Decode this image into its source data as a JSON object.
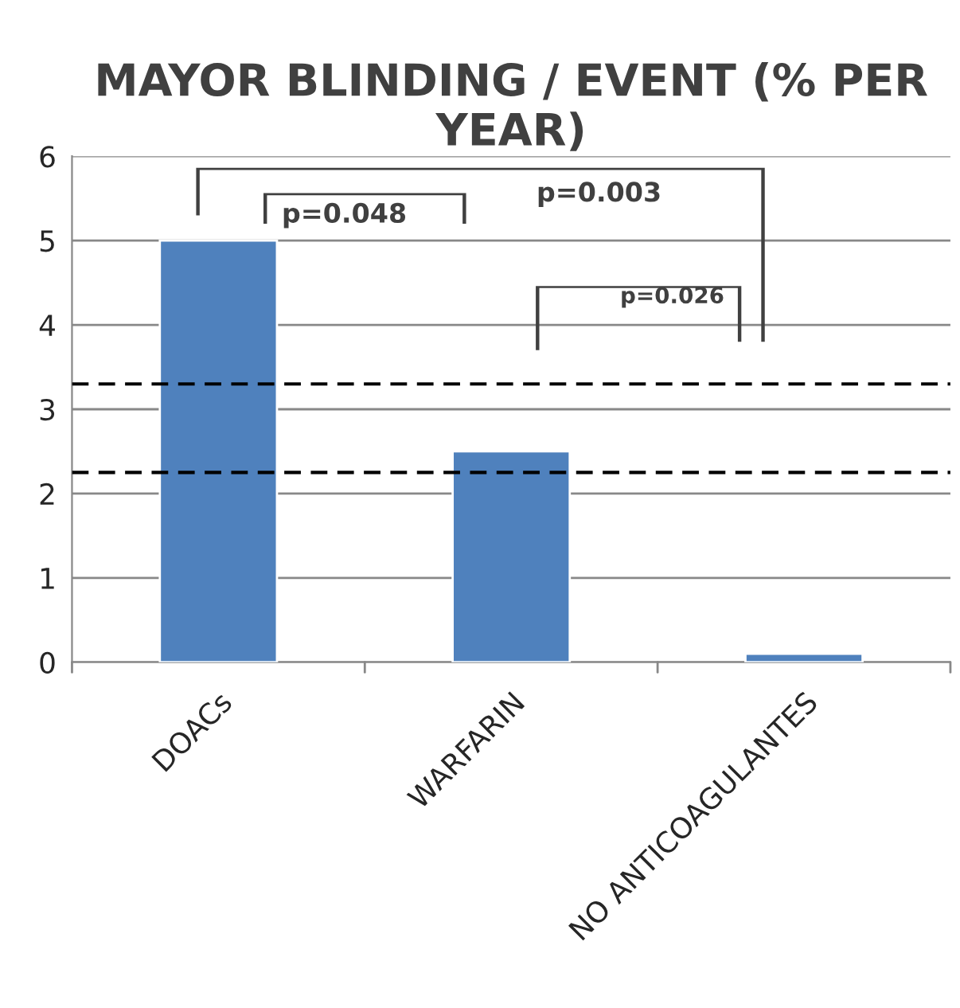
{
  "chart_data": {
    "type": "bar",
    "title": "MAYOR BLINDING / EVENT (% PER YEAR)",
    "categories": [
      "DOACs",
      "WARFARIN",
      "NO ANTICOAGULANTES"
    ],
    "values": [
      5.0,
      2.5,
      0.1
    ],
    "color": "#4f81bd",
    "ylim": [
      0,
      6
    ],
    "yticks": [
      0,
      1,
      2,
      3,
      4,
      5,
      6
    ],
    "grid": "y",
    "ref_lines": [
      {
        "axis": "y",
        "value": 3.3,
        "color": "#000000",
        "line_style": "dashed"
      },
      {
        "axis": "y",
        "value": 2.25,
        "color": "#000000",
        "line_style": "dashed"
      }
    ],
    "annotations": [
      "p=0.048",
      "p=0.003",
      "p=0.026"
    ]
  }
}
